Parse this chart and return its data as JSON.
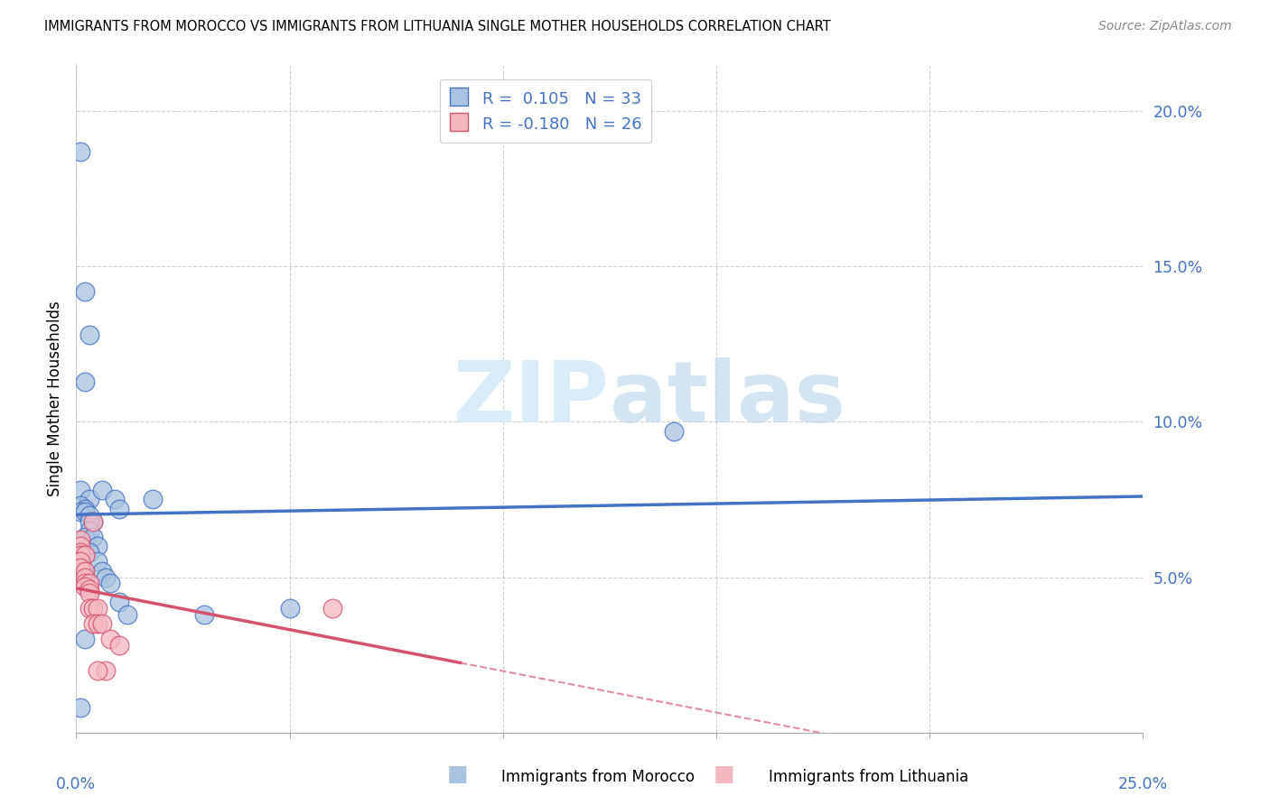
{
  "title": "IMMIGRANTS FROM MOROCCO VS IMMIGRANTS FROM LITHUANIA SINGLE MOTHER HOUSEHOLDS CORRELATION CHART",
  "source": "Source: ZipAtlas.com",
  "ylabel": "Single Mother Households",
  "xlim": [
    0.0,
    0.25
  ],
  "ylim": [
    0.0,
    0.215
  ],
  "yticks": [
    0.05,
    0.1,
    0.15,
    0.2
  ],
  "ytick_labels": [
    "5.0%",
    "10.0%",
    "15.0%",
    "20.0%"
  ],
  "xticks": [
    0.0,
    0.05,
    0.1,
    0.15,
    0.2,
    0.25
  ],
  "morocco_color": "#a8c4e0",
  "morocco_line_color": "#4472c4",
  "lithuania_color": "#f4b8c1",
  "lithuania_line_color": "#d4526e",
  "watermark_color": "#d5eaf7",
  "morocco_points": [
    [
      0.001,
      0.187
    ],
    [
      0.002,
      0.142
    ],
    [
      0.003,
      0.128
    ],
    [
      0.002,
      0.113
    ],
    [
      0.001,
      0.078
    ],
    [
      0.003,
      0.075
    ],
    [
      0.001,
      0.073
    ],
    [
      0.002,
      0.072
    ],
    [
      0.001,
      0.071
    ],
    [
      0.002,
      0.071
    ],
    [
      0.003,
      0.07
    ],
    [
      0.004,
      0.068
    ],
    [
      0.003,
      0.068
    ],
    [
      0.003,
      0.065
    ],
    [
      0.002,
      0.063
    ],
    [
      0.004,
      0.063
    ],
    [
      0.005,
      0.06
    ],
    [
      0.003,
      0.058
    ],
    [
      0.005,
      0.055
    ],
    [
      0.006,
      0.052
    ],
    [
      0.007,
      0.05
    ],
    [
      0.008,
      0.048
    ],
    [
      0.006,
      0.078
    ],
    [
      0.009,
      0.075
    ],
    [
      0.01,
      0.072
    ],
    [
      0.01,
      0.042
    ],
    [
      0.012,
      0.038
    ],
    [
      0.03,
      0.038
    ],
    [
      0.05,
      0.04
    ],
    [
      0.14,
      0.097
    ],
    [
      0.018,
      0.075
    ],
    [
      0.001,
      0.008
    ],
    [
      0.002,
      0.03
    ]
  ],
  "lithuania_points": [
    [
      0.001,
      0.062
    ],
    [
      0.001,
      0.06
    ],
    [
      0.001,
      0.058
    ],
    [
      0.001,
      0.057
    ],
    [
      0.002,
      0.057
    ],
    [
      0.001,
      0.055
    ],
    [
      0.001,
      0.053
    ],
    [
      0.002,
      0.052
    ],
    [
      0.002,
      0.05
    ],
    [
      0.002,
      0.048
    ],
    [
      0.003,
      0.048
    ],
    [
      0.002,
      0.047
    ],
    [
      0.003,
      0.046
    ],
    [
      0.003,
      0.045
    ],
    [
      0.004,
      0.068
    ],
    [
      0.003,
      0.04
    ],
    [
      0.004,
      0.04
    ],
    [
      0.005,
      0.04
    ],
    [
      0.004,
      0.035
    ],
    [
      0.005,
      0.035
    ],
    [
      0.006,
      0.035
    ],
    [
      0.008,
      0.03
    ],
    [
      0.06,
      0.04
    ],
    [
      0.01,
      0.028
    ],
    [
      0.007,
      0.02
    ],
    [
      0.005,
      0.02
    ]
  ]
}
